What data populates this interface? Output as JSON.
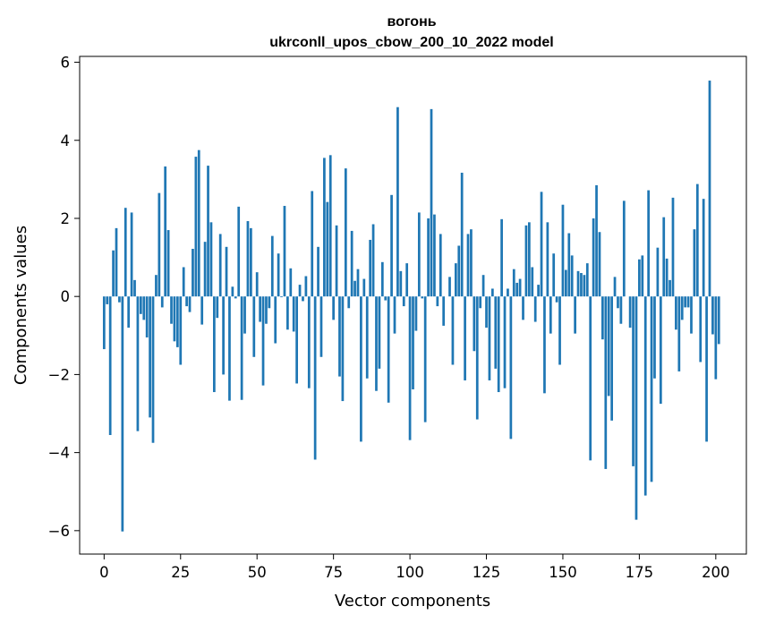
{
  "chart_data": {
    "type": "bar",
    "title_line1": "вогонь",
    "title_line2": "ukrconll_upos_cbow_200_10_2022 model",
    "xlabel": "Vector components",
    "ylabel": "Components values",
    "xlim": [
      -8,
      210
    ],
    "ylim": [
      -6.6,
      6.15
    ],
    "xticks": [
      {
        "value": 0,
        "label": "0"
      },
      {
        "value": 25,
        "label": "25"
      },
      {
        "value": 50,
        "label": "50"
      },
      {
        "value": 75,
        "label": "75"
      },
      {
        "value": 100,
        "label": "100"
      },
      {
        "value": 125,
        "label": "125"
      },
      {
        "value": 150,
        "label": "150"
      },
      {
        "value": 175,
        "label": "175"
      },
      {
        "value": 200,
        "label": "200"
      }
    ],
    "yticks": [
      {
        "value": -6,
        "label": "−6"
      },
      {
        "value": -4,
        "label": "−4"
      },
      {
        "value": -2,
        "label": "−2"
      },
      {
        "value": 0,
        "label": "0"
      },
      {
        "value": 2,
        "label": "2"
      },
      {
        "value": 4,
        "label": "4"
      },
      {
        "value": 6,
        "label": "6"
      }
    ],
    "bar_color": "#1f77b4",
    "grid": false,
    "values": [
      -1.35,
      -0.2,
      -3.55,
      1.18,
      1.75,
      -0.15,
      -6.02,
      2.27,
      -0.8,
      2.15,
      0.42,
      -3.45,
      -0.45,
      -0.6,
      -1.05,
      -3.1,
      -3.75,
      0.55,
      2.65,
      -0.28,
      3.33,
      1.7,
      -0.7,
      -1.15,
      -1.3,
      -1.75,
      0.75,
      -0.25,
      -0.4,
      1.22,
      3.58,
      3.75,
      -0.72,
      1.4,
      3.35,
      1.9,
      -2.45,
      -0.55,
      1.6,
      -2.0,
      1.27,
      -2.67,
      0.25,
      -0.05,
      2.3,
      -2.65,
      -0.95,
      1.93,
      1.75,
      -1.55,
      0.62,
      -0.65,
      -2.28,
      -0.7,
      -0.3,
      1.55,
      -1.2,
      1.1,
      -0.02,
      2.32,
      -0.85,
      0.72,
      -0.9,
      -2.23,
      0.3,
      -0.12,
      0.52,
      -2.35,
      2.7,
      -4.18,
      1.27,
      -1.55,
      3.55,
      2.42,
      3.62,
      -0.6,
      1.82,
      -2.05,
      -2.68,
      3.28,
      -0.3,
      1.68,
      0.4,
      0.7,
      -3.72,
      0.45,
      -2.1,
      1.45,
      1.85,
      -2.42,
      -1.85,
      0.88,
      -0.1,
      -2.72,
      2.6,
      -0.95,
      4.85,
      0.65,
      -0.25,
      0.85,
      -3.68,
      -2.38,
      -0.88,
      2.15,
      -0.05,
      -3.22,
      2.0,
      4.8,
      2.1,
      -0.25,
      1.6,
      -0.75,
      0.0,
      0.5,
      -1.75,
      0.85,
      1.3,
      3.17,
      -2.15,
      1.6,
      1.72,
      -1.4,
      -3.15,
      -0.3,
      0.55,
      -0.8,
      -2.15,
      0.2,
      -1.85,
      -2.45,
      1.98,
      -2.35,
      0.2,
      -3.65,
      0.7,
      0.35,
      0.45,
      -0.6,
      1.82,
      1.9,
      0.75,
      -0.65,
      0.3,
      2.68,
      -2.48,
      1.9,
      -0.95,
      1.1,
      -0.15,
      -1.75,
      2.35,
      0.68,
      1.62,
      1.05,
      -0.95,
      0.65,
      0.6,
      0.55,
      0.85,
      -4.2,
      2.0,
      2.85,
      1.65,
      -1.1,
      -4.42,
      -2.55,
      -3.18,
      0.5,
      -0.3,
      -0.7,
      2.45,
      0.0,
      -0.8,
      -4.35,
      -5.72,
      0.95,
      1.05,
      -5.1,
      2.72,
      -4.75,
      -2.1,
      1.25,
      -2.75,
      2.03,
      0.97,
      0.42,
      2.53,
      -0.85,
      -1.92,
      -0.6,
      -0.28,
      -0.28,
      -0.95,
      1.72,
      2.88,
      -1.68,
      2.5,
      -3.72,
      5.53,
      -0.97,
      -2.12,
      -1.22
    ]
  }
}
